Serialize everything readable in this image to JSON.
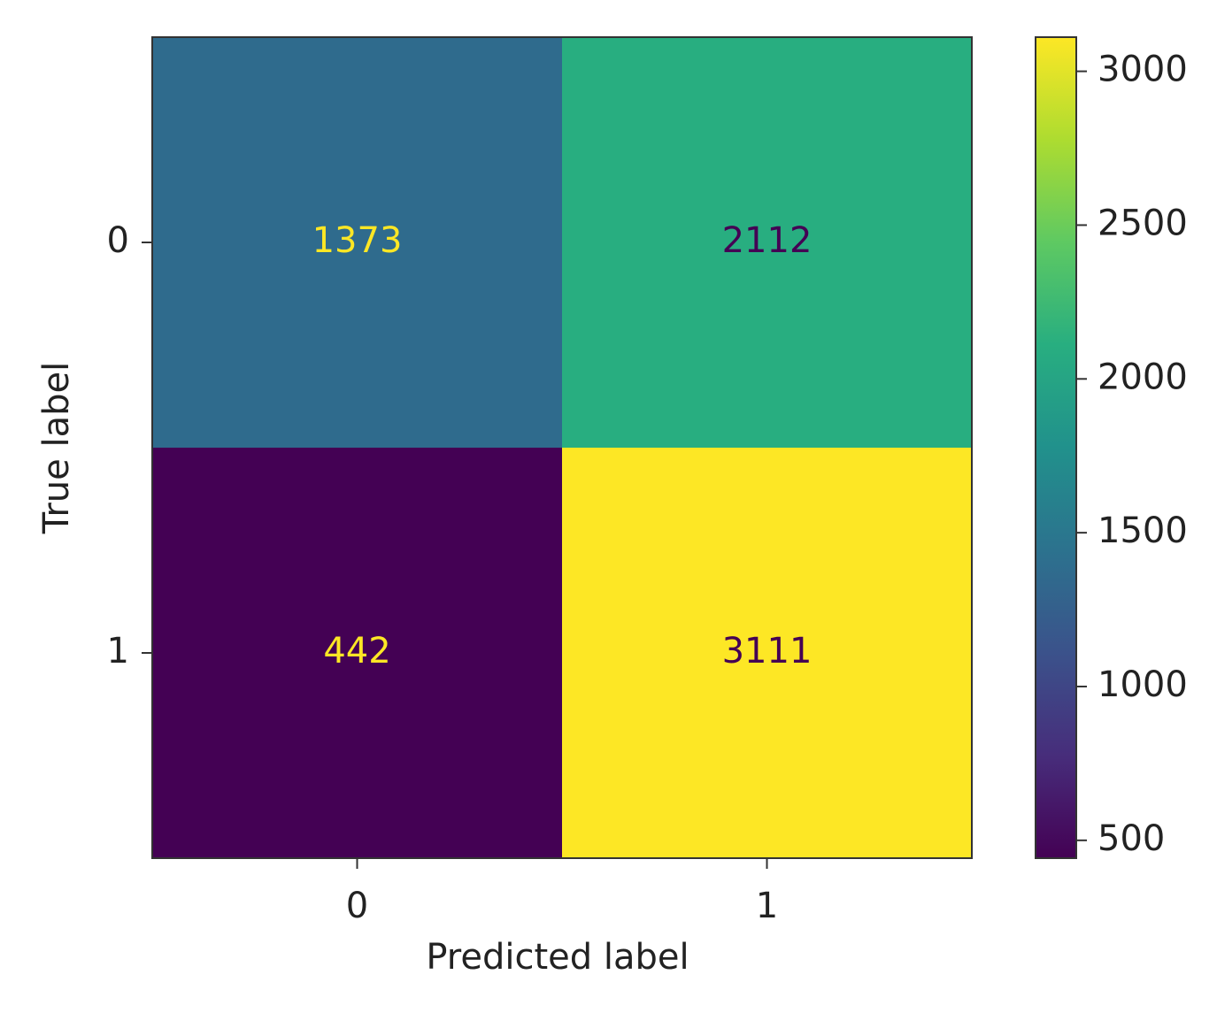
{
  "chart_data": {
    "type": "heatmap",
    "x_label": "Predicted label",
    "y_label": "True label",
    "x_categories": [
      "0",
      "1"
    ],
    "y_categories": [
      "0",
      "1"
    ],
    "values": [
      [
        1373,
        2112
      ],
      [
        442,
        3111
      ]
    ],
    "colormap": "viridis",
    "colorbar_lim": [
      442,
      3111
    ],
    "colorbar_ticks": [
      500,
      1000,
      1500,
      2000,
      2500,
      3000
    ]
  }
}
